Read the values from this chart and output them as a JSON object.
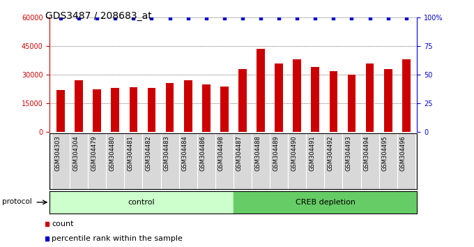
{
  "title": "GDS3487 / 208683_at",
  "categories": [
    "GSM304303",
    "GSM304304",
    "GSM304479",
    "GSM304480",
    "GSM304481",
    "GSM304482",
    "GSM304483",
    "GSM304484",
    "GSM304486",
    "GSM304498",
    "GSM304487",
    "GSM304488",
    "GSM304489",
    "GSM304490",
    "GSM304491",
    "GSM304492",
    "GSM304493",
    "GSM304494",
    "GSM304495",
    "GSM304496"
  ],
  "bar_values": [
    22000,
    27000,
    22500,
    23000,
    23500,
    23000,
    25500,
    27000,
    25000,
    24000,
    33000,
    43500,
    36000,
    38000,
    34000,
    32000,
    30000,
    36000,
    33000,
    38000
  ],
  "percentile_values": [
    99,
    99,
    99,
    99,
    99,
    99,
    99,
    99,
    99,
    99,
    99,
    99,
    99,
    99,
    99,
    99,
    99,
    99,
    99,
    99
  ],
  "bar_color": "#cc0000",
  "percentile_color": "#0000cc",
  "ylim_left": [
    0,
    60000
  ],
  "ylim_right": [
    0,
    100
  ],
  "yticks_left": [
    0,
    15000,
    30000,
    45000,
    60000
  ],
  "yticks_right": [
    0,
    25,
    50,
    75,
    100
  ],
  "control_label": "control",
  "creb_label": "CREB depletion",
  "protocol_label": "protocol",
  "control_count": 10,
  "legend_count_label": "count",
  "legend_percentile_label": "percentile rank within the sample",
  "control_bg": "#ccffcc",
  "creb_bg": "#66cc66",
  "xlabels_bg": "#d8d8d8",
  "title_fontsize": 10,
  "tick_fontsize": 7,
  "label_fontsize": 6,
  "axis_label_color_left": "#cc0000",
  "axis_label_color_right": "#0000cc",
  "fig_width": 6.8,
  "fig_height": 3.54,
  "fig_dpi": 100
}
